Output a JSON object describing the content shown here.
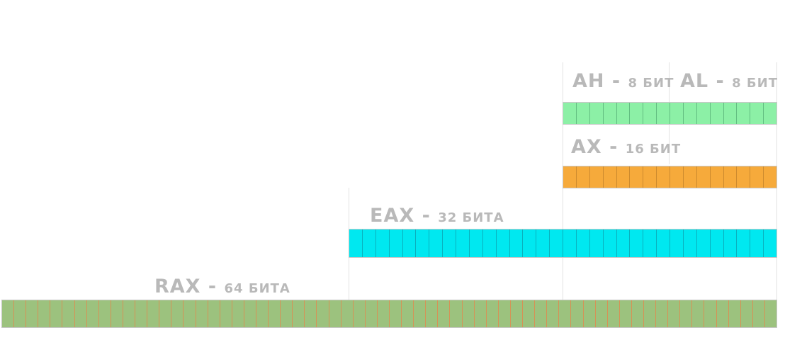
{
  "colors": {
    "rax": "#9cc27e",
    "eax": "#00e8f0",
    "ax": "#f6aa3b",
    "ahal": "#8cf0a6",
    "rax_grid": "#d69256",
    "eax_grid": "#0ab0bd",
    "ax_grid": "#cc8a2e",
    "ahal_grid": "#62bd80",
    "guide_line": "#e2e2e2",
    "label": "#b9b9b9"
  },
  "labels": {
    "ah": {
      "name": "AH",
      "sep": " - ",
      "size": "8 БИТ"
    },
    "al": {
      "name": "AL",
      "sep": " - ",
      "size": "8 БИТ"
    },
    "ax": {
      "name": "AX",
      "sep": " - ",
      "size": "16 БИТ"
    },
    "eax": {
      "name": "EAX",
      "sep": " - ",
      "size": "32 БИТА"
    },
    "rax": {
      "name": "RAX",
      "sep": " - ",
      "size": "64 БИТА"
    }
  },
  "registers": [
    {
      "id": "rax",
      "bits": 64
    },
    {
      "id": "eax",
      "bits": 32
    },
    {
      "id": "ax",
      "bits": 16
    },
    {
      "id": "ahal",
      "bits": 16
    }
  ]
}
